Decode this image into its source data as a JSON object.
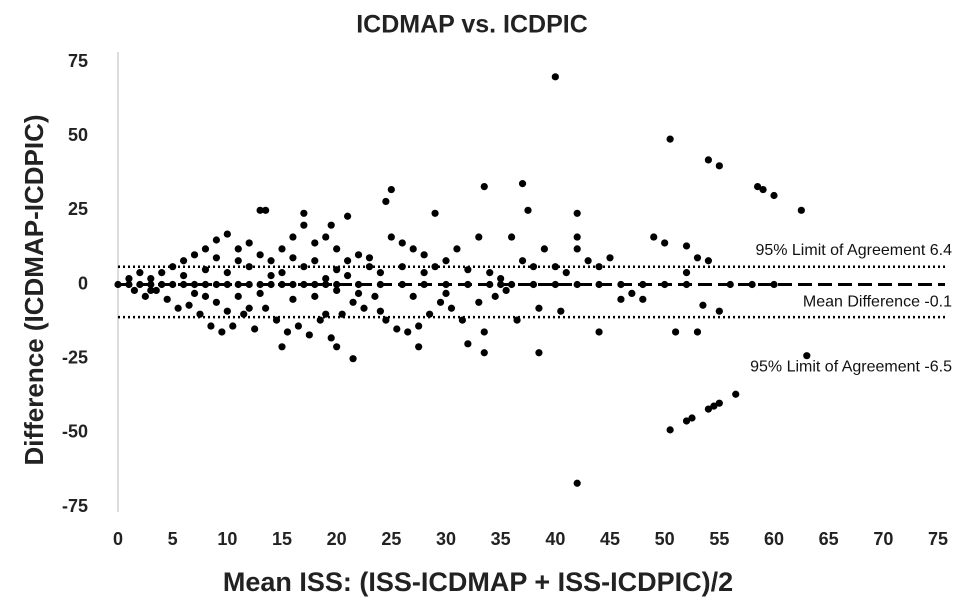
{
  "chart_data": {
    "type": "scatter",
    "title": "ICDMAP vs. ICDPIC",
    "x_label": "Mean ISS: (ISS-ICDMAP + ISS-ICDPIC)/2",
    "y_label": "Difference  (ICDMAP-ICDPIC)",
    "xlim": [
      0,
      75
    ],
    "xticks": [
      0,
      5,
      10,
      15,
      20,
      25,
      30,
      35,
      40,
      45,
      50,
      55,
      60,
      65,
      70,
      75
    ],
    "ylim": [
      -75,
      75
    ],
    "yticks": [
      -75,
      -50,
      -25,
      0,
      25,
      50,
      75
    ],
    "grid": false,
    "color": "#000000",
    "x": [
      0,
      1,
      2,
      3,
      4,
      5,
      6,
      7,
      8,
      9,
      10,
      11,
      12,
      13,
      14,
      15,
      16,
      17,
      18,
      19,
      20,
      22,
      24,
      26,
      28,
      30,
      32,
      34,
      35,
      36,
      38,
      40,
      42,
      44,
      46,
      48,
      50,
      52,
      56,
      1,
      1.5,
      2,
      2.5,
      3,
      3.5,
      4,
      4.5,
      5,
      5.5,
      6,
      6.5,
      7,
      7.5,
      8,
      8.5,
      9,
      9.5,
      10,
      10.5,
      11,
      11.5,
      12,
      12.5,
      13,
      13.5,
      14,
      14.5,
      15,
      15.5,
      16,
      16.5,
      17,
      17.5,
      18,
      18.5,
      19,
      19.5,
      20,
      20.5,
      21,
      21.5,
      22,
      22.5,
      23,
      23.5,
      24,
      24.5,
      25,
      25.5,
      26,
      26.5,
      27,
      27.5,
      28,
      28.5,
      29,
      29.5,
      30,
      30.5,
      31,
      31.5,
      33,
      33.5,
      34,
      34.5,
      35,
      35.5,
      36,
      36.5,
      37,
      38,
      38.5,
      39,
      40,
      40.5,
      41,
      42,
      43,
      44,
      45,
      46,
      47,
      48,
      3,
      6,
      7,
      8,
      9,
      10,
      11,
      12,
      13,
      14,
      16,
      17,
      18,
      19,
      20,
      21,
      22,
      23,
      24,
      26,
      27,
      28,
      30,
      32,
      33,
      11,
      12,
      15,
      16,
      18,
      19,
      10,
      9,
      8,
      20,
      40,
      50.5,
      54,
      55,
      58.5,
      59,
      60,
      62.5,
      63,
      50.5,
      52,
      52.5,
      54,
      54.5,
      55,
      56.5,
      42,
      33.5,
      37,
      25,
      24.5,
      37.5,
      42,
      42,
      49,
      50,
      52,
      53,
      54,
      52,
      51,
      53,
      53.5,
      55,
      58,
      60,
      13,
      13.5,
      17,
      19.5,
      21,
      29,
      15,
      20,
      21.5,
      27.5,
      33.5,
      38.5,
      32,
      44
    ],
    "y": [
      0,
      0,
      0,
      0,
      0,
      0,
      0,
      0,
      0,
      0,
      0,
      0,
      0,
      0,
      0,
      0,
      0,
      0,
      0,
      0,
      0,
      0,
      0,
      0,
      0,
      0,
      0,
      0,
      0,
      0,
      0,
      0,
      0,
      0,
      0,
      0,
      0,
      0,
      0,
      2,
      -2,
      4,
      -4,
      2,
      -2,
      4,
      -5,
      6,
      -8,
      8,
      -7,
      10,
      -10,
      12,
      -14,
      15,
      -16,
      17,
      -14,
      12,
      -10,
      14,
      -15,
      10,
      -8,
      8,
      -12,
      12,
      -16,
      16,
      -14,
      20,
      -17,
      14,
      -12,
      16,
      -18,
      12,
      -10,
      8,
      -6,
      10,
      -8,
      6,
      -4,
      4,
      -12,
      16,
      -15,
      14,
      -16,
      12,
      -14,
      10,
      -10,
      6,
      -6,
      8,
      -8,
      12,
      -12,
      16,
      -16,
      4,
      -4,
      2,
      -2,
      16,
      -12,
      8,
      6,
      -8,
      12,
      6,
      -9,
      4,
      12,
      8,
      6,
      9,
      -5,
      -3,
      -5,
      -2,
      3,
      -3,
      5,
      -6,
      4,
      -4,
      6,
      -3,
      3,
      -5,
      6,
      -4,
      2,
      -2,
      3,
      -3,
      9,
      -9,
      6,
      -4,
      4,
      -3,
      5,
      -6,
      8,
      -8,
      4,
      9,
      8,
      -10,
      -9,
      9,
      -4,
      5,
      70,
      49,
      42,
      40,
      33,
      32,
      30,
      25,
      -24,
      -49,
      -46,
      -45,
      -42,
      -41,
      -40,
      -37,
      -67,
      33,
      34,
      32,
      28,
      25,
      24,
      16,
      16,
      14,
      13,
      9,
      8,
      4,
      -16,
      -16,
      -7,
      -9,
      0,
      0,
      25,
      25,
      24,
      20,
      23,
      24,
      -21,
      -21,
      -25,
      -21,
      -23,
      -23,
      -20,
      -16
    ],
    "lines": [
      {
        "y": 6,
        "style": "dotted"
      },
      {
        "y": 0,
        "style": "dashed"
      },
      {
        "y": -11,
        "style": "dotted"
      }
    ],
    "annotations": [
      "95% Limit of Agreement 6.4",
      "Mean Difference -0.1",
      "95% Limit of Agreement -6.5"
    ]
  }
}
